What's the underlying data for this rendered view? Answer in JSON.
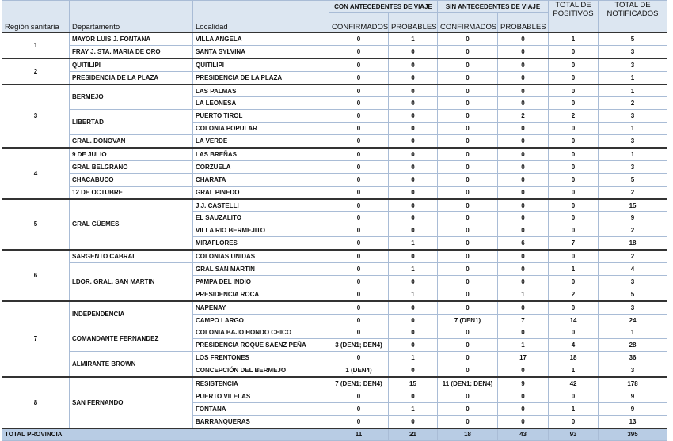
{
  "header": {
    "group_con": "CON ANTECEDENTES DE VIAJE",
    "group_sin": "SIN ANTECEDENTES DE VIAJE",
    "region": "Región sanitaria",
    "departamento": "Departamento",
    "localidad": "Localidad",
    "con_confirmados": "CONFIRMADOS",
    "con_probables": "PROBABLES",
    "sin_confirmados": "CONFIRMADOS",
    "sin_probables": "PROBABLES",
    "total_positivos": "TOTAL DE POSITIVOS",
    "total_notificados": "TOTAL DE NOTIFICADOS"
  },
  "regions": [
    {
      "name": "1",
      "departments": [
        {
          "name": "MAYOR LUIS J. FONTANA",
          "localities": [
            {
              "name": "VILLA ANGELA",
              "values": [
                0,
                1,
                0,
                0,
                1,
                5
              ]
            }
          ]
        },
        {
          "name": "FRAY J. STA. MARIA DE ORO",
          "localities": [
            {
              "name": "SANTA SYLVINA",
              "values": [
                0,
                0,
                0,
                0,
                0,
                3
              ]
            }
          ]
        }
      ]
    },
    {
      "name": "2",
      "departments": [
        {
          "name": "QUITILIPI",
          "localities": [
            {
              "name": "QUITILIPI",
              "values": [
                0,
                0,
                0,
                0,
                0,
                3
              ]
            }
          ]
        },
        {
          "name": "PRESIDENCIA DE LA PLAZA",
          "localities": [
            {
              "name": "PRESIDENCIA DE LA PLAZA",
              "values": [
                0,
                0,
                0,
                0,
                0,
                1
              ]
            }
          ]
        }
      ]
    },
    {
      "name": "3",
      "departments": [
        {
          "name": "BERMEJO",
          "localities": [
            {
              "name": "LAS PALMAS",
              "values": [
                0,
                0,
                0,
                0,
                0,
                1
              ]
            },
            {
              "name": "LA LEONESA",
              "values": [
                0,
                0,
                0,
                0,
                0,
                2
              ]
            }
          ]
        },
        {
          "name": "LIBERTAD",
          "localities": [
            {
              "name": "PUERTO TIROL",
              "values": [
                0,
                0,
                0,
                2,
                2,
                3
              ]
            },
            {
              "name": "COLONIA POPULAR",
              "values": [
                0,
                0,
                0,
                0,
                0,
                1
              ]
            }
          ]
        },
        {
          "name": "GRAL. DONOVAN",
          "localities": [
            {
              "name": "LA VERDE",
              "values": [
                0,
                0,
                0,
                0,
                0,
                3
              ]
            }
          ]
        }
      ]
    },
    {
      "name": "4",
      "departments": [
        {
          "name": "9 DE JULIO",
          "localities": [
            {
              "name": "LAS BREÑAS",
              "values": [
                0,
                0,
                0,
                0,
                0,
                1
              ]
            }
          ]
        },
        {
          "name": "GRAL BELGRANO",
          "localities": [
            {
              "name": "CORZUELA",
              "values": [
                0,
                0,
                0,
                0,
                0,
                3
              ]
            }
          ]
        },
        {
          "name": "CHACABUCO",
          "localities": [
            {
              "name": "CHARATA",
              "values": [
                0,
                0,
                0,
                0,
                0,
                5
              ]
            }
          ]
        },
        {
          "name": "12 DE OCTUBRE",
          "localities": [
            {
              "name": "GRAL PINEDO",
              "values": [
                0,
                0,
                0,
                0,
                0,
                2
              ]
            }
          ]
        }
      ]
    },
    {
      "name": "5",
      "departments": [
        {
          "name": "GRAL GÜEMES",
          "localities": [
            {
              "name": "J.J. CASTELLI",
              "values": [
                0,
                0,
                0,
                0,
                0,
                15
              ]
            },
            {
              "name": "EL SAUZALITO",
              "values": [
                0,
                0,
                0,
                0,
                0,
                9
              ]
            },
            {
              "name": "VILLA RIO BERMEJITO",
              "values": [
                0,
                0,
                0,
                0,
                0,
                2
              ]
            },
            {
              "name": "MIRAFLORES",
              "values": [
                0,
                1,
                0,
                6,
                7,
                18
              ]
            }
          ]
        }
      ]
    },
    {
      "name": "6",
      "departments": [
        {
          "name": "SARGENTO CABRAL",
          "localities": [
            {
              "name": "COLONIAS UNIDAS",
              "values": [
                0,
                0,
                0,
                0,
                0,
                2
              ]
            }
          ]
        },
        {
          "name": "LDOR. GRAL. SAN MARTIN",
          "localities": [
            {
              "name": "GRAL SAN MARTIN",
              "values": [
                0,
                1,
                0,
                0,
                1,
                4
              ]
            },
            {
              "name": "PAMPA DEL INDIO",
              "values": [
                0,
                0,
                0,
                0,
                0,
                3
              ]
            },
            {
              "name": "PRESIDENCIA ROCA",
              "values": [
                0,
                1,
                0,
                1,
                2,
                5
              ]
            }
          ]
        }
      ]
    },
    {
      "name": "7",
      "departments": [
        {
          "name": "INDEPENDENCIA",
          "localities": [
            {
              "name": "NAPENAY",
              "values": [
                0,
                0,
                0,
                0,
                0,
                3
              ]
            },
            {
              "name": "CAMPO LARGO",
              "values": [
                0,
                0,
                "7 (DEN1)",
                7,
                14,
                24
              ]
            }
          ]
        },
        {
          "name": "COMANDANTE FERNANDEZ",
          "localities": [
            {
              "name": "COLONIA BAJO HONDO CHICO",
              "values": [
                0,
                0,
                0,
                0,
                0,
                1
              ]
            },
            {
              "name": "PRESIDENCIA ROQUE SAENZ PEÑA",
              "values": [
                "3 (DEN1; DEN4)",
                0,
                0,
                1,
                4,
                28
              ]
            }
          ]
        },
        {
          "name": "ALMIRANTE BROWN",
          "localities": [
            {
              "name": "LOS FRENTONES",
              "values": [
                0,
                1,
                0,
                17,
                18,
                36
              ]
            },
            {
              "name": "CONCEPCIÓN DEL BERMEJO",
              "values": [
                "1 (DEN4)",
                0,
                0,
                0,
                1,
                3
              ]
            }
          ]
        }
      ]
    },
    {
      "name": "8",
      "departments": [
        {
          "name": "SAN FERNANDO",
          "localities": [
            {
              "name": "RESISTENCIA",
              "values": [
                "7 (DEN1; DEN4)",
                15,
                "11 (DEN1; DEN4)",
                9,
                42,
                178
              ]
            },
            {
              "name": "PUERTO VILELAS",
              "values": [
                0,
                0,
                0,
                0,
                0,
                9
              ]
            },
            {
              "name": "FONTANA",
              "values": [
                0,
                1,
                0,
                0,
                1,
                9
              ]
            },
            {
              "name": "BARRANQUERAS",
              "values": [
                0,
                0,
                0,
                0,
                0,
                13
              ]
            }
          ]
        }
      ]
    }
  ],
  "total": {
    "label": "TOTAL PROVINCIA",
    "values": [
      11,
      21,
      18,
      43,
      93,
      395
    ]
  }
}
